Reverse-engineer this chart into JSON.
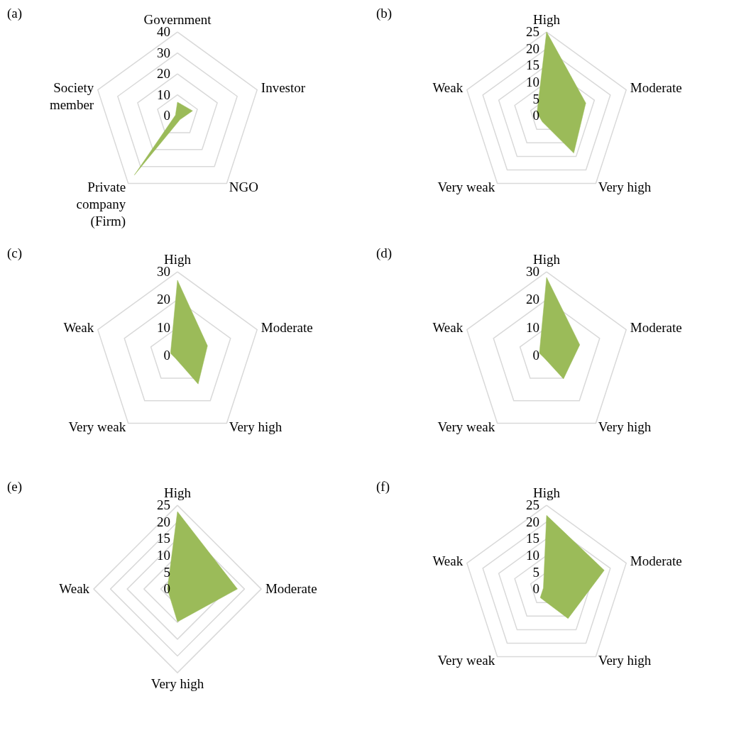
{
  "chart_data": [
    {
      "type": "radar",
      "title": "(a)",
      "categories": [
        "Government",
        "Investor",
        "NGO",
        "Private\ncompany\n(Firm)",
        "Society\nmember"
      ],
      "ylim": [
        0,
        40
      ],
      "yticks": [
        0,
        10,
        20,
        30,
        40
      ],
      "series": [
        {
          "color": "#9bbb59",
          "values": [
            6.5,
            7.6,
            2.2,
            35,
            1
          ]
        }
      ]
    },
    {
      "type": "radar",
      "title": "(b)",
      "categories": [
        "High",
        "Moderate",
        "Very high",
        "Very weak",
        "Weak"
      ],
      "ylim": [
        0,
        25
      ],
      "yticks": [
        0,
        5,
        10,
        15,
        20,
        25
      ],
      "series": [
        {
          "color": "#9bbb59",
          "values": [
            25,
            12.3,
            13.8,
            2.2,
            3
          ]
        }
      ]
    },
    {
      "type": "radar",
      "title": "(c)",
      "categories": [
        "High",
        "Moderate",
        "Very high",
        "Very weak",
        "Weak"
      ],
      "ylim": [
        0,
        30
      ],
      "yticks": [
        0,
        10,
        20,
        30
      ],
      "series": [
        {
          "color": "#9bbb59",
          "values": [
            27,
            11.3,
            12.6,
            1.2,
            2.6
          ]
        }
      ]
    },
    {
      "type": "radar",
      "title": "(d)",
      "categories": [
        "High",
        "Moderate",
        "Very high",
        "Very weak",
        "Weak"
      ],
      "ylim": [
        0,
        30
      ],
      "yticks": [
        0,
        10,
        20,
        30
      ],
      "series": [
        {
          "color": "#9bbb59",
          "values": [
            28,
            12.5,
            10.3,
            1.2,
            2.7
          ]
        }
      ]
    },
    {
      "type": "radar",
      "title": "(e)",
      "categories": [
        "High",
        "Moderate",
        "Very high",
        "Weak"
      ],
      "ylim": [
        0,
        25
      ],
      "yticks": [
        0,
        5,
        10,
        15,
        20,
        25
      ],
      "series": [
        {
          "color": "#9bbb59",
          "values": [
            23.1,
            17.9,
            9.8,
            3
          ]
        }
      ]
    },
    {
      "type": "radar",
      "title": "(f)",
      "categories": [
        "High",
        "Moderate",
        "Very high",
        "Very weak",
        "Weak"
      ],
      "ylim": [
        0,
        25
      ],
      "yticks": [
        0,
        5,
        10,
        15,
        20,
        25
      ],
      "series": [
        {
          "color": "#9bbb59",
          "values": [
            22,
            18.1,
            10.9,
            3.2,
            1
          ]
        }
      ]
    }
  ]
}
